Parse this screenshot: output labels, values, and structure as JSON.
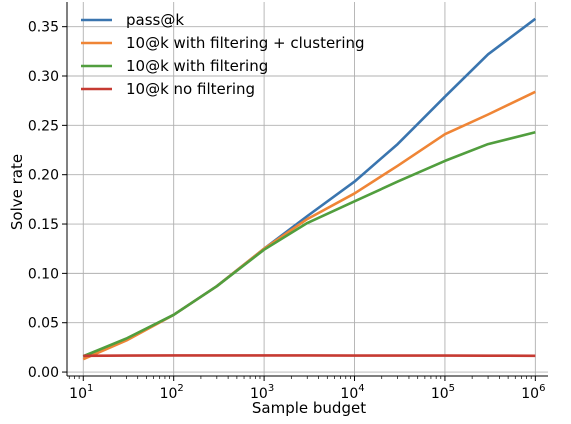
{
  "chart_data": {
    "type": "line",
    "title": "",
    "xlabel": "Sample budget",
    "ylabel": "Solve rate",
    "xscale": "log",
    "xlim_exp": [
      0.82,
      6.14
    ],
    "ylim": [
      -0.004,
      0.375
    ],
    "grid": true,
    "legend_position": "top-left",
    "x_ticks": [
      {
        "base": "10",
        "exp": "1",
        "value": 10
      },
      {
        "base": "10",
        "exp": "2",
        "value": 100
      },
      {
        "base": "10",
        "exp": "3",
        "value": 1000
      },
      {
        "base": "10",
        "exp": "4",
        "value": 10000
      },
      {
        "base": "10",
        "exp": "5",
        "value": 100000
      },
      {
        "base": "10",
        "exp": "6",
        "value": 1000000
      }
    ],
    "y_ticks": [
      {
        "label": "0.00",
        "value": 0.0
      },
      {
        "label": "0.05",
        "value": 0.05
      },
      {
        "label": "0.10",
        "value": 0.1
      },
      {
        "label": "0.15",
        "value": 0.15
      },
      {
        "label": "0.20",
        "value": 0.2
      },
      {
        "label": "0.25",
        "value": 0.25
      },
      {
        "label": "0.30",
        "value": 0.3
      },
      {
        "label": "0.35",
        "value": 0.35
      }
    ],
    "x": [
      10,
      30,
      100,
      300,
      1000,
      3000,
      10000,
      30000,
      100000,
      300000,
      1000000
    ],
    "series": [
      {
        "name": "pass@k",
        "color": "#3a75af",
        "values": [
          0.016,
          0.033,
          0.058,
          0.087,
          0.125,
          0.158,
          0.193,
          0.231,
          0.279,
          0.322,
          0.358
        ]
      },
      {
        "name": "10@k with filtering + clustering",
        "color": "#ef8536",
        "values": [
          0.013,
          0.032,
          0.058,
          0.087,
          0.125,
          0.155,
          0.181,
          0.209,
          0.241,
          0.261,
          0.284
        ]
      },
      {
        "name": "10@k with filtering",
        "color": "#519e3e",
        "values": [
          0.016,
          0.034,
          0.058,
          0.087,
          0.124,
          0.151,
          0.173,
          0.193,
          0.214,
          0.231,
          0.243
        ]
      },
      {
        "name": "10@k no filtering",
        "color": "#c63a32",
        "values": [
          0.0165,
          0.0167,
          0.0168,
          0.0168,
          0.0168,
          0.0168,
          0.0167,
          0.0167,
          0.0167,
          0.0166,
          0.0165
        ]
      }
    ]
  }
}
